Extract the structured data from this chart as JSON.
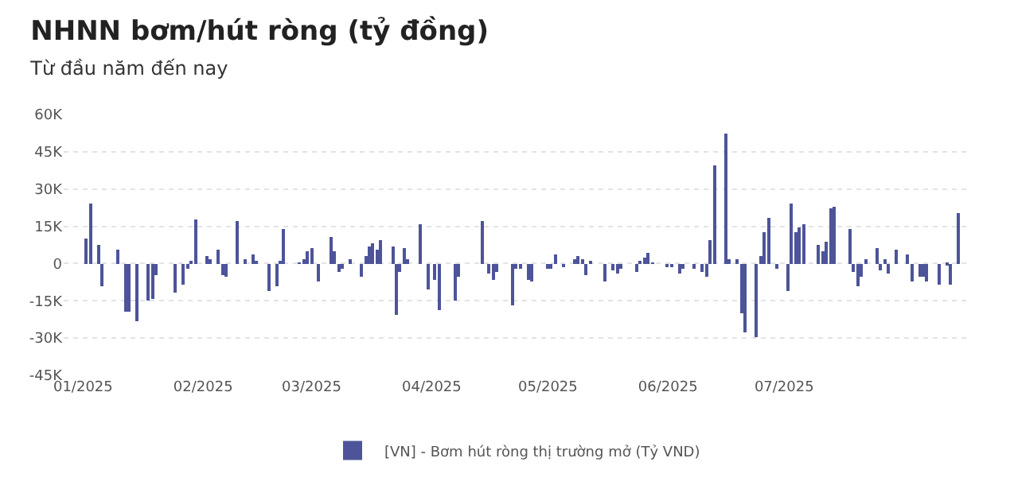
{
  "chart_data": {
    "type": "bar",
    "title": "NHNN bơm/hút ròng (tỷ đồng)",
    "subtitle": "Từ đầu năm đến nay",
    "x": [
      "2025-01-02",
      "2025-01-03",
      "2025-01-05",
      "2025-01-06",
      "2025-01-10",
      "2025-01-12",
      "2025-01-13",
      "2025-01-15",
      "2025-01-18",
      "2025-01-19",
      "2025-01-20",
      "2025-01-25",
      "2025-01-27",
      "2025-01-28",
      "2025-01-29",
      "2025-01-30",
      "2025-02-02",
      "2025-02-03",
      "2025-02-05",
      "2025-02-06",
      "2025-02-07",
      "2025-02-10",
      "2025-02-12",
      "2025-02-14",
      "2025-02-15",
      "2025-02-18",
      "2025-02-20",
      "2025-02-21",
      "2025-02-22",
      "2025-02-26",
      "2025-02-27",
      "2025-02-28",
      "2025-03-01",
      "2025-03-03",
      "2025-03-06",
      "2025-03-07",
      "2025-03-08",
      "2025-03-09",
      "2025-03-11",
      "2025-03-14",
      "2025-03-15",
      "2025-03-16",
      "2025-03-17",
      "2025-03-18",
      "2025-03-19",
      "2025-03-22",
      "2025-03-23",
      "2025-03-24",
      "2025-03-25",
      "2025-03-26",
      "2025-03-29",
      "2025-03-31",
      "2025-04-02",
      "2025-04-03",
      "2025-04-07",
      "2025-04-08",
      "2025-04-14",
      "2025-04-16",
      "2025-04-17",
      "2025-04-18",
      "2025-04-22",
      "2025-04-23",
      "2025-04-24",
      "2025-04-26",
      "2025-04-27",
      "2025-05-01",
      "2025-05-02",
      "2025-05-03",
      "2025-05-05",
      "2025-05-08",
      "2025-05-09",
      "2025-05-10",
      "2025-05-11",
      "2025-05-12",
      "2025-05-16",
      "2025-05-18",
      "2025-05-19",
      "2025-05-20",
      "2025-05-24",
      "2025-05-25",
      "2025-05-26",
      "2025-05-27",
      "2025-05-28",
      "2025-06-01",
      "2025-06-02",
      "2025-06-04",
      "2025-06-05",
      "2025-06-08",
      "2025-06-10",
      "2025-06-11",
      "2025-06-12",
      "2025-06-13",
      "2025-06-16",
      "2025-06-17",
      "2025-06-19",
      "2025-06-20",
      "2025-06-21",
      "2025-06-24",
      "2025-06-25",
      "2025-06-26",
      "2025-06-27",
      "2025-06-29",
      "2025-07-02",
      "2025-07-03",
      "2025-07-04",
      "2025-07-05",
      "2025-07-06",
      "2025-07-10",
      "2025-07-11",
      "2025-07-12",
      "2025-07-13",
      "2025-07-14",
      "2025-07-18",
      "2025-07-19",
      "2025-07-20",
      "2025-07-21",
      "2025-07-22",
      "2025-07-25",
      "2025-07-26",
      "2025-07-27",
      "2025-07-28",
      "2025-07-30",
      "2025-08-02",
      "2025-08-03",
      "2025-08-05",
      "2025-08-06",
      "2025-08-07",
      "2025-08-10",
      "2025-08-12",
      "2025-08-13",
      "2025-08-15"
    ],
    "series": [
      {
        "name": "[VN] - Bơm hút ròng thị trường mở (Tỷ VND)",
        "color": "#4d5499",
        "values": [
          10000,
          24000,
          7500,
          -9400,
          5600,
          -19700,
          -19700,
          -23000,
          -15000,
          -14000,
          -4700,
          -12000,
          -8400,
          -1900,
          900,
          17800,
          2800,
          1900,
          5600,
          -4700,
          -5600,
          16900,
          1900,
          3700,
          1000,
          -11000,
          -9000,
          1000,
          14000,
          300,
          1900,
          4700,
          6000,
          -7500,
          11000,
          4700,
          -3400,
          -1900,
          1900,
          -5600,
          2800,
          6600,
          8400,
          5600,
          9400,
          6600,
          -20600,
          -3700,
          6000,
          1900,
          16000,
          -10300,
          -6600,
          -18700,
          -15000,
          -5200,
          16900,
          -4000,
          -6600,
          -3700,
          -16900,
          -1900,
          -1900,
          -6600,
          -7000,
          -2200,
          -1900,
          3700,
          -1500,
          1500,
          2800,
          1900,
          -4700,
          900,
          -7500,
          -2800,
          -4000,
          -1900,
          -3700,
          900,
          2200,
          4100,
          400,
          -1500,
          -1500,
          -4000,
          -1900,
          -2200,
          -3700,
          -5600,
          9700,
          39700,
          52500,
          1900,
          1500,
          -20000,
          -27700,
          -29600,
          2800,
          12700,
          18400,
          -1900,
          -10900,
          24400,
          12700,
          14400,
          15900,
          7500,
          5200,
          9000,
          22000,
          23000,
          14000,
          -3400,
          -9400,
          -5600,
          1900,
          6000,
          -2800,
          1500,
          -4000,
          5600,
          3700,
          -7000,
          -5600,
          -5600,
          -7500,
          -8400,
          -1000,
          -8400,
          20600
        ]
      }
    ],
    "xlim": [
      "2024-12-27",
      "2025-08-17"
    ],
    "xticks": [
      {
        "value": "2025-01-01",
        "label": "01/2025"
      },
      {
        "value": "2025-02-01",
        "label": "02/2025"
      },
      {
        "value": "2025-03-01",
        "label": "03/2025"
      },
      {
        "value": "2025-04-01",
        "label": "04/2025"
      },
      {
        "value": "2025-05-01",
        "label": "05/2025"
      },
      {
        "value": "2025-06-01",
        "label": "06/2025"
      },
      {
        "value": "2025-07-01",
        "label": "07/2025"
      }
    ],
    "ylim": [
      -45000,
      60000
    ],
    "yticks": [
      {
        "value": -45000,
        "label": "-45K"
      },
      {
        "value": -30000,
        "label": "-30K"
      },
      {
        "value": -15000,
        "label": "-15K"
      },
      {
        "value": 0,
        "label": "0"
      },
      {
        "value": 15000,
        "label": "15K"
      },
      {
        "value": 30000,
        "label": "30K"
      },
      {
        "value": 45000,
        "label": "45K"
      },
      {
        "value": 60000,
        "label": "60K"
      }
    ],
    "grid": "y",
    "legend": "bottom"
  }
}
